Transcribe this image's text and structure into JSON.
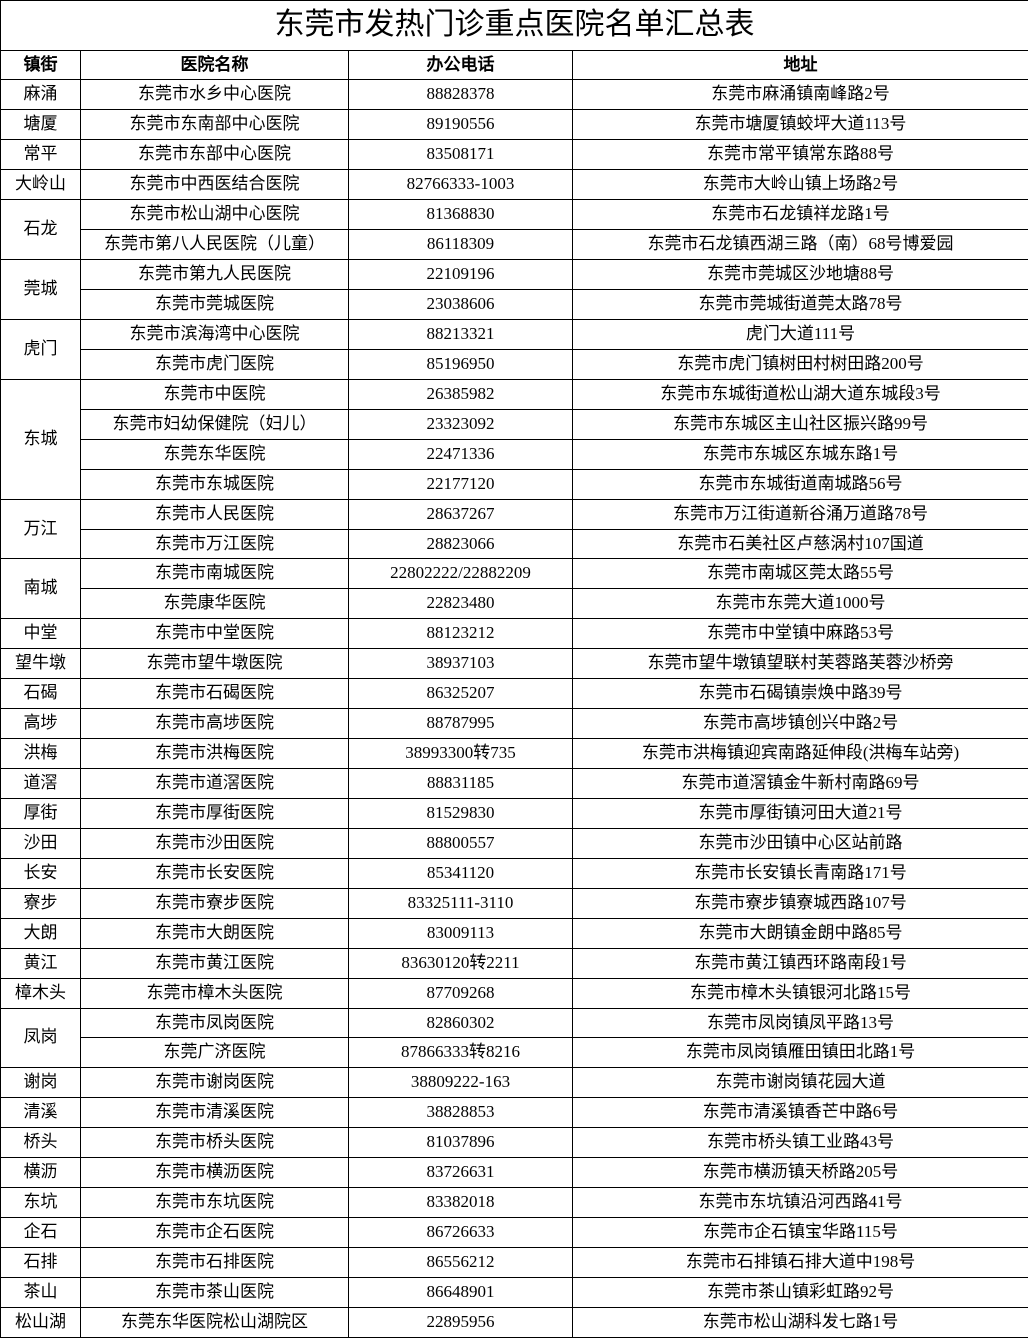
{
  "title": "东莞市发热门诊重点医院名单汇总表",
  "headers": {
    "town": "镇街",
    "hospital": "医院名称",
    "phone": "办公电话",
    "address": "地址"
  },
  "groups": [
    {
      "town": "麻涌",
      "rows": [
        {
          "hospital": "东莞市水乡中心医院",
          "phone": "88828378",
          "address": "东莞市麻涌镇南峰路2号"
        }
      ]
    },
    {
      "town": "塘厦",
      "rows": [
        {
          "hospital": "东莞市东南部中心医院",
          "phone": "89190556",
          "address": "东莞市塘厦镇蛟坪大道113号"
        }
      ]
    },
    {
      "town": "常平",
      "rows": [
        {
          "hospital": "东莞市东部中心医院",
          "phone": "83508171",
          "address": "东莞市常平镇常东路88号"
        }
      ]
    },
    {
      "town": "大岭山",
      "rows": [
        {
          "hospital": "东莞市中西医结合医院",
          "phone": "82766333-1003",
          "address": "东莞市大岭山镇上场路2号"
        }
      ]
    },
    {
      "town": "石龙",
      "rows": [
        {
          "hospital": "东莞市松山湖中心医院",
          "phone": "81368830",
          "address": "东莞市石龙镇祥龙路1号"
        },
        {
          "hospital": "东莞市第八人民医院（儿童）",
          "phone": "86118309",
          "address": "东莞市石龙镇西湖三路（南）68号博爱园"
        }
      ]
    },
    {
      "town": "莞城",
      "rows": [
        {
          "hospital": "东莞市第九人民医院",
          "phone": "22109196",
          "address": "东莞市莞城区沙地塘88号"
        },
        {
          "hospital": "东莞市莞城医院",
          "phone": "23038606",
          "address": "东莞市莞城街道莞太路78号"
        }
      ]
    },
    {
      "town": "虎门",
      "rows": [
        {
          "hospital": "东莞市滨海湾中心医院",
          "phone": "88213321",
          "address": "虎门大道111号"
        },
        {
          "hospital": "东莞市虎门医院",
          "phone": "85196950",
          "address": "东莞市虎门镇树田村树田路200号"
        }
      ]
    },
    {
      "town": "东城",
      "rows": [
        {
          "hospital": "东莞市中医院",
          "phone": "26385982",
          "address": "东莞市东城街道松山湖大道东城段3号"
        },
        {
          "hospital": "东莞市妇幼保健院（妇儿）",
          "phone": "23323092",
          "address": "东莞市东城区主山社区振兴路99号"
        },
        {
          "hospital": "东莞东华医院",
          "phone": "22471336",
          "address": "东莞市东城区东城东路1号"
        },
        {
          "hospital": "东莞市东城医院",
          "phone": "22177120",
          "address": "东莞市东城街道南城路56号"
        }
      ]
    },
    {
      "town": "万江",
      "rows": [
        {
          "hospital": "东莞市人民医院",
          "phone": "28637267",
          "address": "东莞市万江街道新谷涌万道路78号"
        },
        {
          "hospital": "东莞市万江医院",
          "phone": "28823066",
          "address": "东莞市石美社区卢慈涡村107国道"
        }
      ]
    },
    {
      "town": "南城",
      "rows": [
        {
          "hospital": "东莞市南城医院",
          "phone": "22802222/22882209",
          "address": "东莞市南城区莞太路55号"
        },
        {
          "hospital": "东莞康华医院",
          "phone": "22823480",
          "address": "东莞市东莞大道1000号"
        }
      ]
    },
    {
      "town": "中堂",
      "rows": [
        {
          "hospital": "东莞市中堂医院",
          "phone": "88123212",
          "address": "东莞市中堂镇中麻路53号"
        }
      ]
    },
    {
      "town": "望牛墩",
      "rows": [
        {
          "hospital": "东莞市望牛墩医院",
          "phone": "38937103",
          "address": "东莞市望牛墩镇望联村芙蓉路芙蓉沙桥旁"
        }
      ]
    },
    {
      "town": "石碣",
      "rows": [
        {
          "hospital": "东莞市石碣医院",
          "phone": "86325207",
          "address": "东莞市石碣镇崇焕中路39号"
        }
      ]
    },
    {
      "town": "高埗",
      "rows": [
        {
          "hospital": "东莞市高埗医院",
          "phone": "88787995",
          "address": "东莞市高埗镇创兴中路2号"
        }
      ]
    },
    {
      "town": "洪梅",
      "rows": [
        {
          "hospital": "东莞市洪梅医院",
          "phone": "38993300转735",
          "address": "东莞市洪梅镇迎宾南路延伸段(洪梅车站旁)"
        }
      ]
    },
    {
      "town": "道滘",
      "rows": [
        {
          "hospital": "东莞市道滘医院",
          "phone": "88831185",
          "address": "东莞市道滘镇金牛新村南路69号"
        }
      ]
    },
    {
      "town": "厚街",
      "rows": [
        {
          "hospital": "东莞市厚街医院",
          "phone": "81529830",
          "address": "东莞市厚街镇河田大道21号"
        }
      ]
    },
    {
      "town": "沙田",
      "rows": [
        {
          "hospital": "东莞市沙田医院",
          "phone": "88800557",
          "address": "东莞市沙田镇中心区站前路"
        }
      ]
    },
    {
      "town": "长安",
      "rows": [
        {
          "hospital": "东莞市长安医院",
          "phone": "85341120",
          "address": "东莞市长安镇长青南路171号"
        }
      ]
    },
    {
      "town": "寮步",
      "rows": [
        {
          "hospital": "东莞市寮步医院",
          "phone": "83325111-3110",
          "address": "东莞市寮步镇寮城西路107号"
        }
      ]
    },
    {
      "town": "大朗",
      "rows": [
        {
          "hospital": "东莞市大朗医院",
          "phone": "83009113",
          "address": "东莞市大朗镇金朗中路85号"
        }
      ]
    },
    {
      "town": "黄江",
      "rows": [
        {
          "hospital": "东莞市黄江医院",
          "phone": "83630120转2211",
          "address": "东莞市黄江镇西环路南段1号"
        }
      ]
    },
    {
      "town": "樟木头",
      "rows": [
        {
          "hospital": "东莞市樟木头医院",
          "phone": "87709268",
          "address": "东莞市樟木头镇银河北路15号"
        }
      ]
    },
    {
      "town": "凤岗",
      "rows": [
        {
          "hospital": "东莞市凤岗医院",
          "phone": "82860302",
          "address": "东莞市凤岗镇凤平路13号"
        },
        {
          "hospital": "东莞广济医院",
          "phone": "87866333转8216",
          "address": "东莞市凤岗镇雁田镇田北路1号"
        }
      ]
    },
    {
      "town": "谢岗",
      "rows": [
        {
          "hospital": "东莞市谢岗医院",
          "phone": "38809222-163",
          "address": "东莞市谢岗镇花园大道"
        }
      ]
    },
    {
      "town": "清溪",
      "rows": [
        {
          "hospital": "东莞市清溪医院",
          "phone": "38828853",
          "address": "东莞市清溪镇香芒中路6号"
        }
      ]
    },
    {
      "town": "桥头",
      "rows": [
        {
          "hospital": "东莞市桥头医院",
          "phone": "81037896",
          "address": "东莞市桥头镇工业路43号"
        }
      ]
    },
    {
      "town": "横沥",
      "rows": [
        {
          "hospital": "东莞市横沥医院",
          "phone": "83726631",
          "address": "东莞市横沥镇天桥路205号"
        }
      ]
    },
    {
      "town": "东坑",
      "rows": [
        {
          "hospital": "东莞市东坑医院",
          "phone": "83382018",
          "address": "东莞市东坑镇沿河西路41号"
        }
      ]
    },
    {
      "town": "企石",
      "rows": [
        {
          "hospital": "东莞市企石医院",
          "phone": "86726633",
          "address": "东莞市企石镇宝华路115号"
        }
      ]
    },
    {
      "town": "石排",
      "rows": [
        {
          "hospital": "东莞市石排医院",
          "phone": "86556212",
          "address": "东莞市石排镇石排大道中198号"
        }
      ]
    },
    {
      "town": "茶山",
      "rows": [
        {
          "hospital": "东莞市茶山医院",
          "phone": "86648901",
          "address": "东莞市茶山镇彩虹路92号"
        }
      ]
    },
    {
      "town": "松山湖",
      "rows": [
        {
          "hospital": "东莞东华医院松山湖院区",
          "phone": "22895956",
          "address": "东莞市松山湖科发七路1号"
        }
      ]
    }
  ]
}
